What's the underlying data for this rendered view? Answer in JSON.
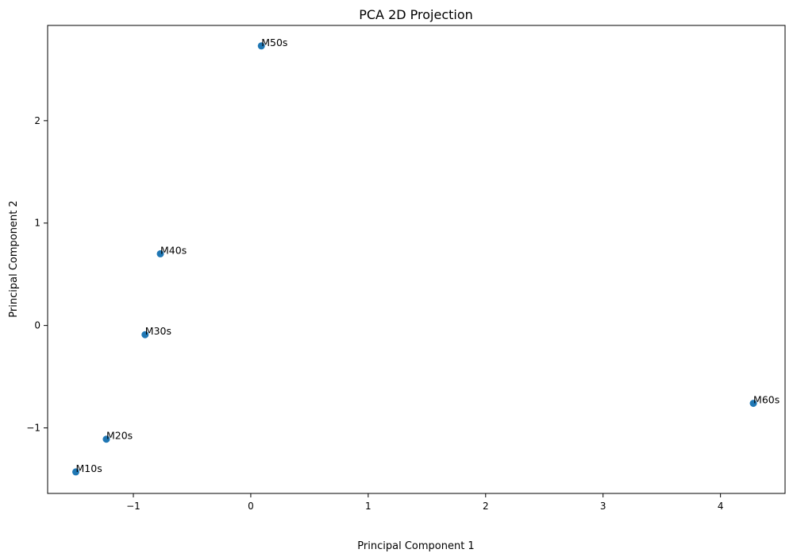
{
  "chart_data": {
    "type": "scatter",
    "title": "PCA 2D Projection",
    "xlabel": "Principal Component 1",
    "ylabel": "Principal Component 2",
    "xlim": [
      -1.73,
      4.55
    ],
    "ylim": [
      -1.64,
      2.93
    ],
    "xticks": [
      -1,
      0,
      1,
      2,
      3,
      4
    ],
    "yticks": [
      -1,
      0,
      1,
      2
    ],
    "grid": false,
    "marker_color": "#1f77b4",
    "points": [
      {
        "label": "M10s",
        "x": -1.49,
        "y": -1.43
      },
      {
        "label": "M20s",
        "x": -1.23,
        "y": -1.11
      },
      {
        "label": "M30s",
        "x": -0.9,
        "y": -0.09
      },
      {
        "label": "M40s",
        "x": -0.77,
        "y": 0.7
      },
      {
        "label": "M50s",
        "x": 0.09,
        "y": 2.73
      },
      {
        "label": "M60s",
        "x": 4.28,
        "y": -0.76
      }
    ]
  }
}
